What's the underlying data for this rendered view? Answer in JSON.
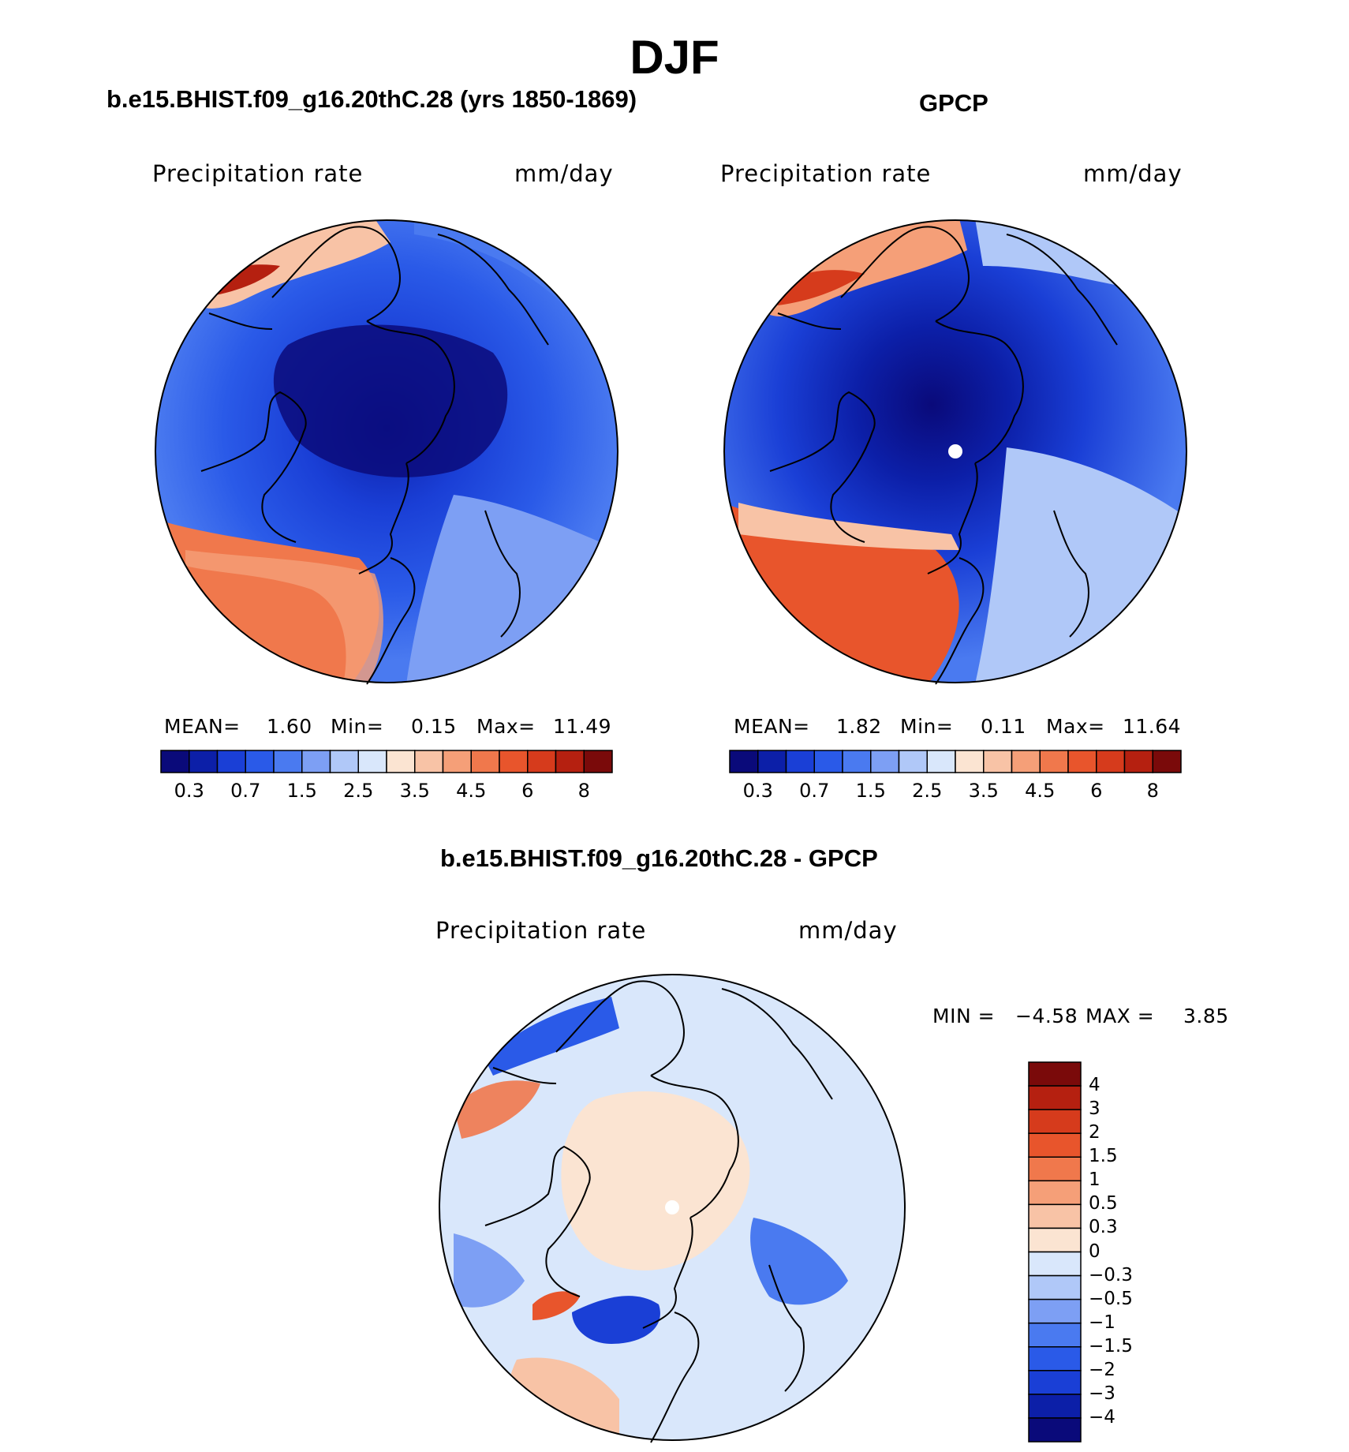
{
  "figure": {
    "title": "DJF"
  },
  "panels": [
    {
      "title": "b.e15.BHIST.f09_g16.20thC.28 (yrs 1850-1869)",
      "variable": "Precipitation rate",
      "units": "mm/day",
      "stats": {
        "mean_label": "MEAN=",
        "mean": "1.60",
        "min_label": "Min=",
        "min": "0.15",
        "max_label": "Max=",
        "max": "11.49"
      }
    },
    {
      "title": "GPCP",
      "variable": "Precipitation rate",
      "units": "mm/day",
      "stats": {
        "mean_label": "MEAN=",
        "mean": "1.82",
        "min_label": "Min=",
        "min": "0.11",
        "max_label": "Max=",
        "max": "11.64"
      }
    },
    {
      "title": "b.e15.BHIST.f09_g16.20thC.28 - GPCP",
      "variable": "Precipitation rate",
      "units": "mm/day",
      "stats": {
        "min_label": "MIN =",
        "min": "−4.58",
        "max_label": "MAX =",
        "max": "3.85"
      }
    }
  ],
  "colorbar_abs": {
    "colors": [
      "#0a0a7a",
      "#0c1fa8",
      "#1a3fd6",
      "#2a5ae8",
      "#4a7af0",
      "#7d9ff4",
      "#b0c8f8",
      "#d9e7fb",
      "#fbe4d2",
      "#f8c3a6",
      "#f59f78",
      "#f0784c",
      "#e8552c",
      "#d63b1c",
      "#b52010",
      "#7a0a0a"
    ],
    "tick_labels": [
      "0.3",
      "0.7",
      "1.5",
      "2.5",
      "3.5",
      "4.5",
      "6",
      "8"
    ],
    "tick_boundary_index": [
      1,
      3,
      5,
      7,
      9,
      11,
      13,
      15
    ]
  },
  "colorbar_diff": {
    "colors": [
      "#0a0a7a",
      "#0c1fa8",
      "#1a3fd6",
      "#2a5ae8",
      "#4a7af0",
      "#7d9ff4",
      "#b0c8f8",
      "#d9e7fb",
      "#fbe4d2",
      "#f8c3a6",
      "#f59f78",
      "#f0784c",
      "#e8552c",
      "#d63b1c",
      "#b52010",
      "#7a0a0a"
    ],
    "tick_labels": [
      "4",
      "3",
      "2",
      "1.5",
      "1",
      "0.5",
      "0.3",
      "0",
      "−0.3",
      "−0.5",
      "−1",
      "−1.5",
      "−2",
      "−3",
      "−4"
    ]
  },
  "maps": {
    "projection": "north polar stereographic",
    "colors": {
      "ocean_high": "#f0784c",
      "low": "#1a3fd6",
      "coast": "#000000",
      "pole_marker": "#ffffff"
    }
  }
}
